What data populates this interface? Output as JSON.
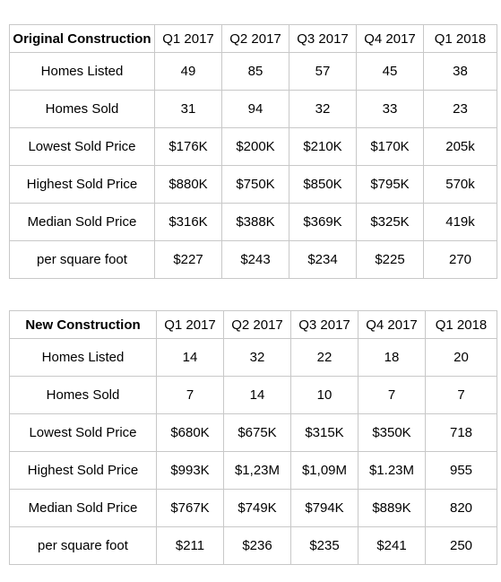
{
  "tables": [
    {
      "title": "Original Construction",
      "quarters": [
        "Q1 2017",
        "Q2 2017",
        "Q3 2017",
        "Q4 2017",
        "Q1 2018"
      ],
      "rows": [
        {
          "label": "Homes Listed",
          "values": [
            "49",
            "85",
            "57",
            "45",
            "38"
          ]
        },
        {
          "label": "Homes Sold",
          "values": [
            "31",
            "94",
            "32",
            "33",
            "23"
          ]
        },
        {
          "label": "Lowest Sold Price",
          "values": [
            "$176K",
            "$200K",
            "$210K",
            "$170K",
            "205k"
          ]
        },
        {
          "label": "Highest Sold Price",
          "values": [
            "$880K",
            "$750K",
            "$850K",
            "$795K",
            "570k"
          ]
        },
        {
          "label": "Median Sold Price",
          "values": [
            "$316K",
            "$388K",
            "$369K",
            "$325K",
            "419k"
          ]
        },
        {
          "label": "per square foot",
          "values": [
            "$227",
            "$243",
            "$234",
            "$225",
            "270"
          ]
        }
      ]
    },
    {
      "title": "New Construction",
      "quarters": [
        "Q1 2017",
        "Q2 2017",
        "Q3 2017",
        "Q4 2017",
        "Q1 2018"
      ],
      "rows": [
        {
          "label": "Homes Listed",
          "values": [
            "14",
            "32",
            "22",
            "18",
            "20"
          ]
        },
        {
          "label": "Homes Sold",
          "values": [
            "7",
            "14",
            "10",
            "7",
            "7"
          ]
        },
        {
          "label": "Lowest Sold Price",
          "values": [
            "$680K",
            "$675K",
            "$315K",
            "$350K",
            "718"
          ]
        },
        {
          "label": "Highest Sold Price",
          "values": [
            "$993K",
            "$1,23M",
            "$1,09M",
            "$1.23M",
            "955"
          ]
        },
        {
          "label": "Median Sold Price",
          "values": [
            "$767K",
            "$749K",
            "$794K",
            "$889K",
            "820"
          ]
        },
        {
          "label": "per square foot",
          "values": [
            "$211",
            "$236",
            "$235",
            "$241",
            "250"
          ]
        }
      ]
    }
  ]
}
